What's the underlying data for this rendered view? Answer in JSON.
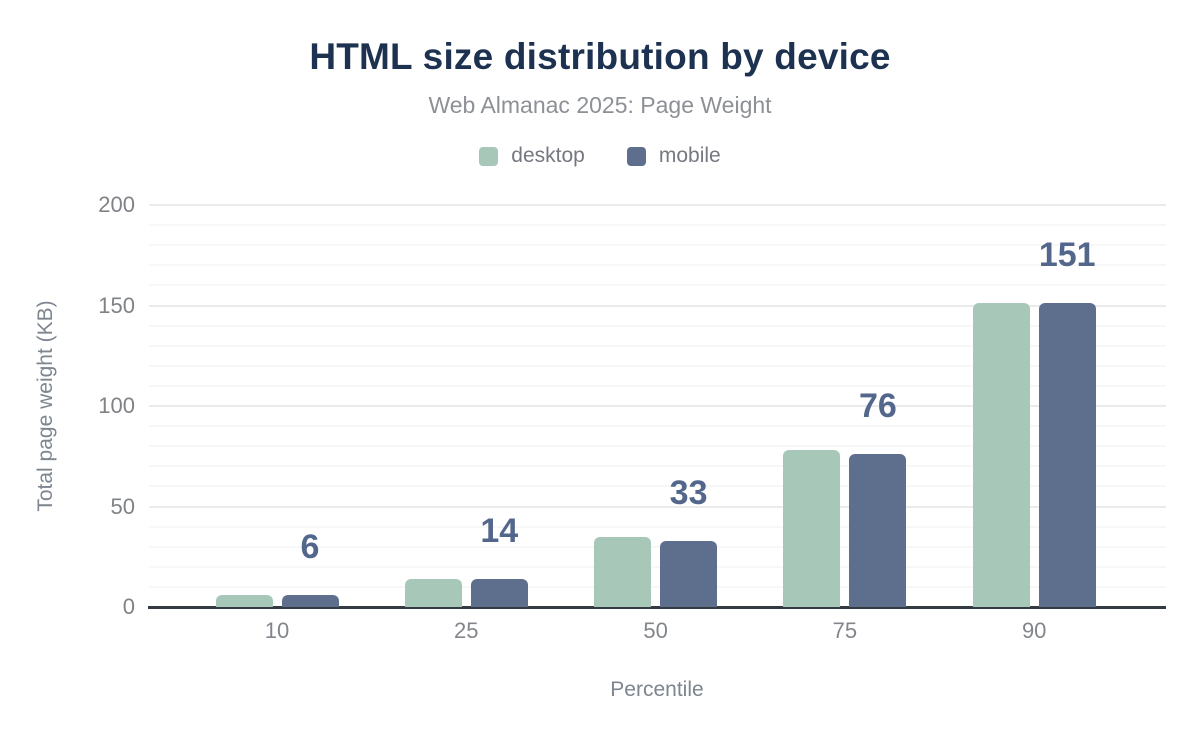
{
  "chart_data": {
    "type": "bar",
    "title": "HTML size distribution by device",
    "subtitle": "Web Almanac 2025: Page Weight",
    "xlabel": "Percentile",
    "ylabel": "Total page weight (KB)",
    "categories": [
      "10",
      "25",
      "50",
      "75",
      "90"
    ],
    "series": [
      {
        "name": "desktop",
        "color": "#a7c8b8",
        "values": [
          6,
          14,
          35,
          78,
          151
        ]
      },
      {
        "name": "mobile",
        "color": "#5e6f8d",
        "values": [
          6,
          14,
          33,
          76,
          151
        ]
      }
    ],
    "annotations": {
      "series": "mobile",
      "values": [
        "6",
        "14",
        "33",
        "76",
        "151"
      ],
      "color": "#53678c"
    },
    "ylim": [
      0,
      200
    ],
    "yticks": [
      0,
      50,
      100,
      150,
      200
    ],
    "grid": {
      "minor_interval": 10,
      "major_interval": 50,
      "visible": true
    },
    "legend_position": "top"
  },
  "colors": {
    "title": "#1d3150",
    "subtitle": "#8d9095",
    "axis_text": "#7f8287",
    "axis_line": "#343a42",
    "gridline_minor": "#f7f7f8",
    "gridline_major": "#ebebee",
    "background": "#ffffff"
  }
}
